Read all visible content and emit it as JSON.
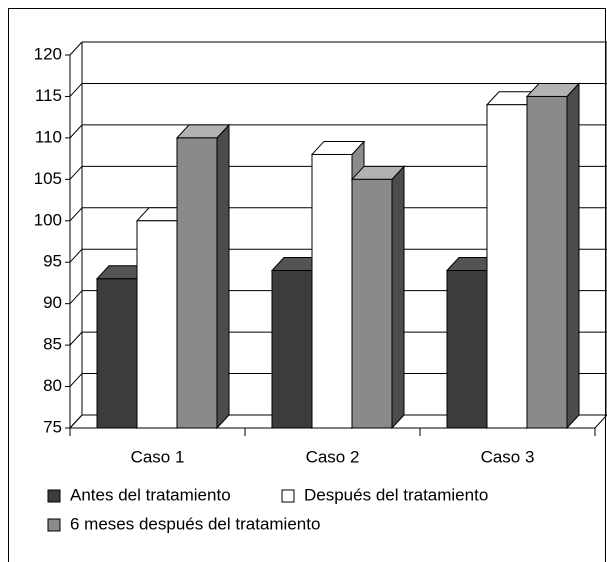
{
  "chart_data": {
    "type": "bar",
    "categories": [
      "Caso 1",
      "Caso 2",
      "Caso 3"
    ],
    "series": [
      {
        "name": "Antes del tratamiento",
        "color": "#3c3c3c",
        "values": [
          93,
          94,
          94
        ]
      },
      {
        "name": "Después del tratamiento",
        "color": "#ffffff",
        "values": [
          100,
          108,
          114
        ]
      },
      {
        "name": "6 meses después del tratamiento",
        "color": "#8a8a8a",
        "values": [
          110,
          105,
          115
        ]
      }
    ],
    "ylim": [
      75,
      120
    ],
    "yticks": [
      75,
      80,
      85,
      90,
      95,
      100,
      105,
      110,
      115,
      120
    ],
    "grid": true
  }
}
